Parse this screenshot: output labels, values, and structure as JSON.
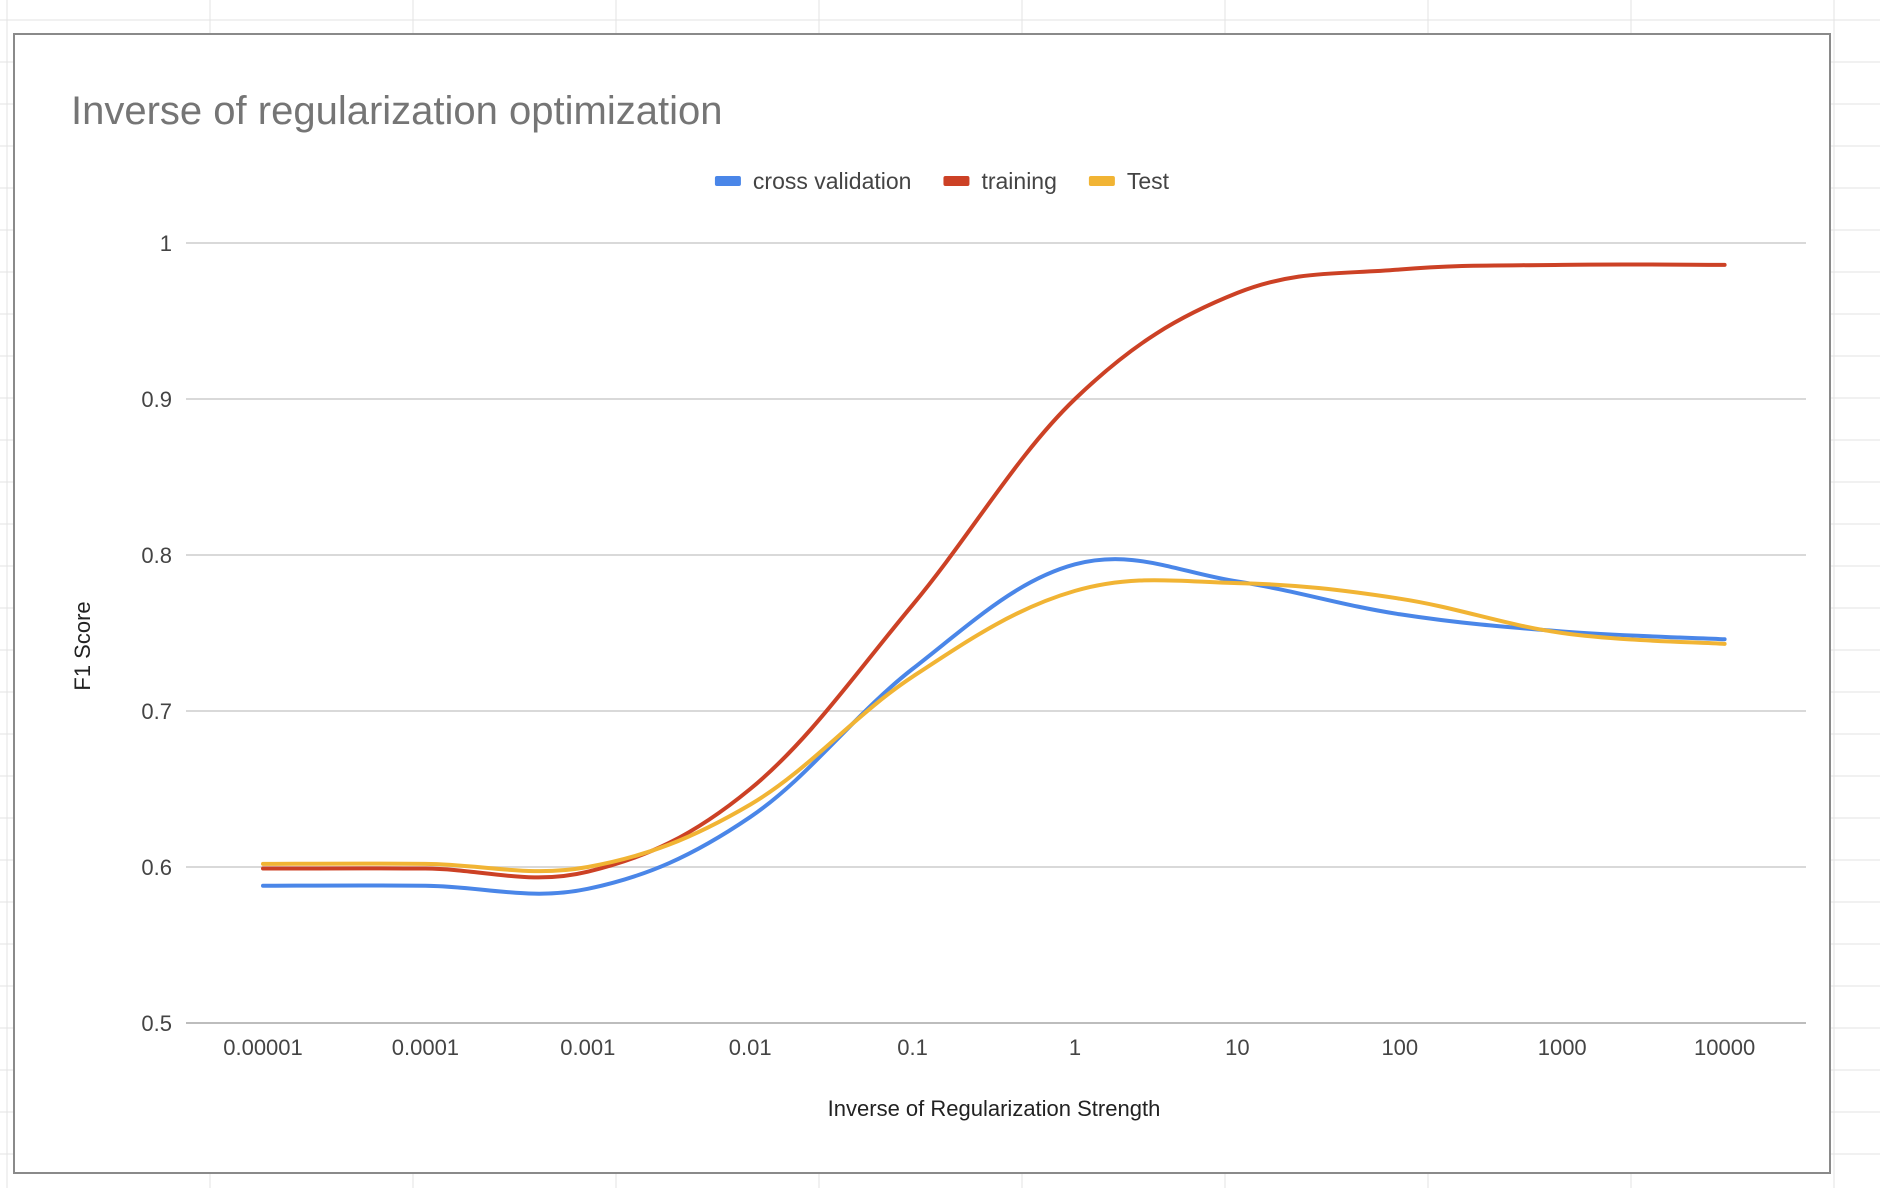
{
  "chart_data": {
    "type": "line",
    "title": "Inverse of regularization optimization",
    "xlabel": "Inverse of Regularization Strength",
    "ylabel": "F1 Score",
    "categories": [
      "0.00001",
      "0.0001",
      "0.001",
      "0.01",
      "0.1",
      "1",
      "10",
      "100",
      "1000",
      "10000"
    ],
    "x": [
      1e-05,
      0.0001,
      0.001,
      0.01,
      0.1,
      1,
      10,
      100,
      1000,
      10000
    ],
    "x_scale": "log",
    "ylim": [
      0.5,
      1
    ],
    "yticks": [
      "0.5",
      "0.6",
      "0.7",
      "0.8",
      "0.9",
      "1"
    ],
    "grid": "horizontal",
    "legend_position": "top",
    "series": [
      {
        "name": "cross validation",
        "color": "#4a86e8",
        "values": [
          0.588,
          0.588,
          0.586,
          0.632,
          0.727,
          0.794,
          0.783,
          0.762,
          0.751,
          0.746
        ]
      },
      {
        "name": "training",
        "color": "#cc4125",
        "values": [
          0.599,
          0.599,
          0.597,
          0.65,
          0.768,
          0.9,
          0.968,
          0.983,
          0.986,
          0.986
        ]
      },
      {
        "name": "Test",
        "color": "#f1b434",
        "values": [
          0.602,
          0.602,
          0.6,
          0.64,
          0.722,
          0.777,
          0.782,
          0.772,
          0.75,
          0.743
        ]
      }
    ]
  }
}
